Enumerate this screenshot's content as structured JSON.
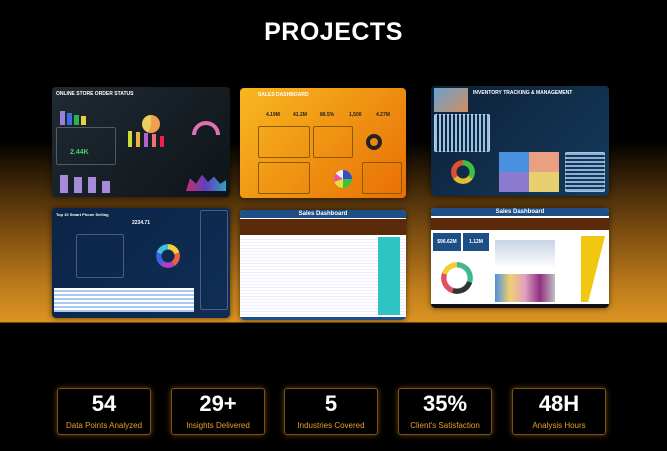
{
  "title": "PROJECTS",
  "projects": [
    {
      "title": "ONLINE STORE ORDER STATUS",
      "kpi": "2.44K"
    },
    {
      "title": "SALES DASHBOARD",
      "kpis": [
        "4.19M",
        "41.2M",
        "86.5%",
        "1,500",
        "4.27M"
      ]
    },
    {
      "title": "INVENTORY TRACKING & MANAGEMENT"
    },
    {
      "title": "Top 10 Smart Phone Selling",
      "kpi": "2234.71"
    },
    {
      "title": "Sales Dashboard"
    },
    {
      "title": "Sales Dashboard",
      "kpis": [
        "$96.62M",
        "1.12M"
      ]
    }
  ],
  "stats": [
    {
      "value": "54",
      "label": "Data Points Analyzed"
    },
    {
      "value": "29+",
      "label": "Insights Delivered"
    },
    {
      "value": "5",
      "label": "Industries Covered"
    },
    {
      "value": "35%",
      "label": "Client's Satisfaction"
    },
    {
      "value": "48H",
      "label": "Analysis Hours"
    }
  ],
  "colors": {
    "accent": "#e6a12a",
    "background": "#000000"
  }
}
